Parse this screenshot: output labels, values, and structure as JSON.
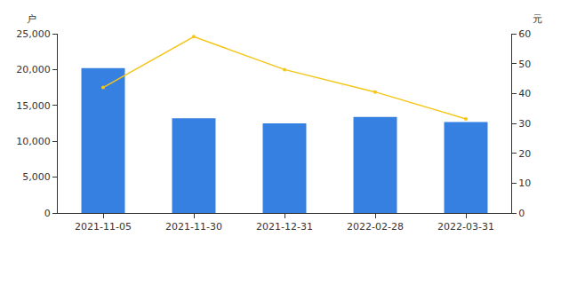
{
  "chart_data": {
    "type": "bar",
    "categories": [
      "2021-11-05",
      "2021-11-30",
      "2021-12-31",
      "2022-02-28",
      "2022-03-31"
    ],
    "ylabel": "户",
    "y2label": "元",
    "grid": false,
    "series": [
      {
        "type": "bar",
        "color": "#3580e0",
        "values": [
          20200,
          13200,
          12500,
          13400,
          12700
        ]
      },
      {
        "type": "line",
        "axis": "y2",
        "color": "#f5c518",
        "marker": "circle",
        "values": [
          42,
          59,
          48,
          40.5,
          31.5
        ]
      }
    ],
    "ylim": [
      0,
      25000
    ],
    "yticks": [
      0,
      {
        "value": 5000,
        "label": "5,000"
      },
      {
        "value": 10000,
        "label": "10,000"
      },
      {
        "value": 15000,
        "label": "15,000"
      },
      {
        "value": 20000,
        "label": "20,000"
      },
      {
        "value": 25000,
        "label": "25,000"
      }
    ],
    "y2lim": [
      0,
      60
    ],
    "y2ticks": [
      0,
      10,
      20,
      30,
      40,
      50,
      60
    ]
  }
}
